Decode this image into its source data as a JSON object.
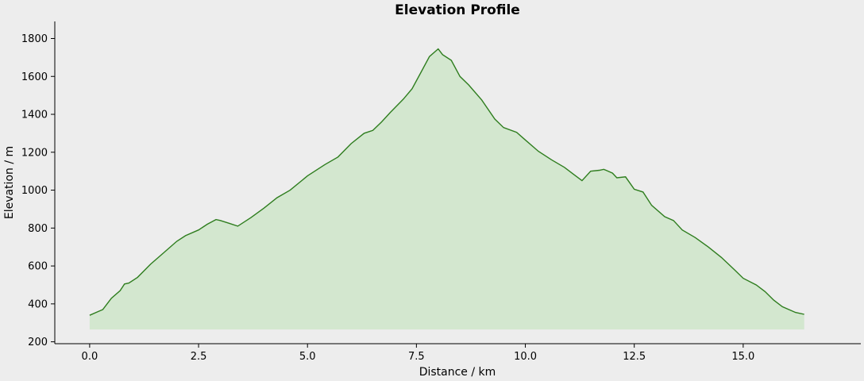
{
  "chart_data": {
    "type": "area",
    "title": "Elevation Profile",
    "xlabel": "Distance / km",
    "ylabel": "Elevation / m",
    "xlim": [
      -0.8,
      17.7
    ],
    "ylim": [
      190,
      1890
    ],
    "xticks": [
      0.0,
      2.5,
      5.0,
      7.5,
      10.0,
      12.5,
      15.0
    ],
    "xtick_labels": [
      "0.0",
      "2.5",
      "5.0",
      "7.5",
      "10.0",
      "12.5",
      "15.0"
    ],
    "yticks": [
      200,
      400,
      600,
      800,
      1000,
      1200,
      1400,
      1600,
      1800
    ],
    "ytick_labels": [
      "200",
      "400",
      "600",
      "800",
      "1000",
      "1200",
      "1400",
      "1600",
      "1800"
    ],
    "fill_baseline": 265,
    "grid": false,
    "legend": "none",
    "colors": {
      "background": "#ededed",
      "line": "#2e7d1e",
      "fill": "#d3e7cf",
      "axis": "#000000"
    },
    "series": [
      {
        "x": [
          0.0,
          0.2,
          0.3,
          0.5,
          0.7,
          0.8,
          0.9,
          1.1,
          1.4,
          1.7,
          2.0,
          2.2,
          2.5,
          2.7,
          2.9,
          3.0,
          3.2,
          3.4,
          3.7,
          4.0,
          4.3,
          4.6,
          5.0,
          5.4,
          5.7,
          6.0,
          6.3,
          6.5,
          6.7,
          6.9,
          7.2,
          7.4,
          7.6,
          7.8,
          8.0,
          8.1,
          8.3,
          8.5,
          8.7,
          9.0,
          9.3,
          9.5,
          9.8,
          10.0,
          10.3,
          10.6,
          10.9,
          11.1,
          11.3,
          11.5,
          11.7,
          11.8,
          12.0,
          12.1,
          12.3,
          12.5,
          12.7,
          12.9,
          13.2,
          13.4,
          13.6,
          13.9,
          14.2,
          14.5,
          14.8,
          15.0,
          15.3,
          15.5,
          15.7,
          15.9,
          16.2,
          16.4
        ],
        "y": [
          340,
          360,
          370,
          430,
          470,
          505,
          510,
          540,
          610,
          670,
          730,
          760,
          790,
          820,
          845,
          840,
          825,
          810,
          855,
          905,
          960,
          1000,
          1075,
          1135,
          1175,
          1245,
          1300,
          1315,
          1360,
          1410,
          1480,
          1535,
          1620,
          1705,
          1745,
          1715,
          1685,
          1600,
          1555,
          1475,
          1375,
          1330,
          1305,
          1265,
          1205,
          1160,
          1120,
          1085,
          1050,
          1100,
          1105,
          1110,
          1090,
          1065,
          1070,
          1005,
          990,
          920,
          860,
          840,
          790,
          750,
          700,
          645,
          580,
          535,
          500,
          465,
          420,
          385,
          355,
          345
        ]
      }
    ]
  }
}
